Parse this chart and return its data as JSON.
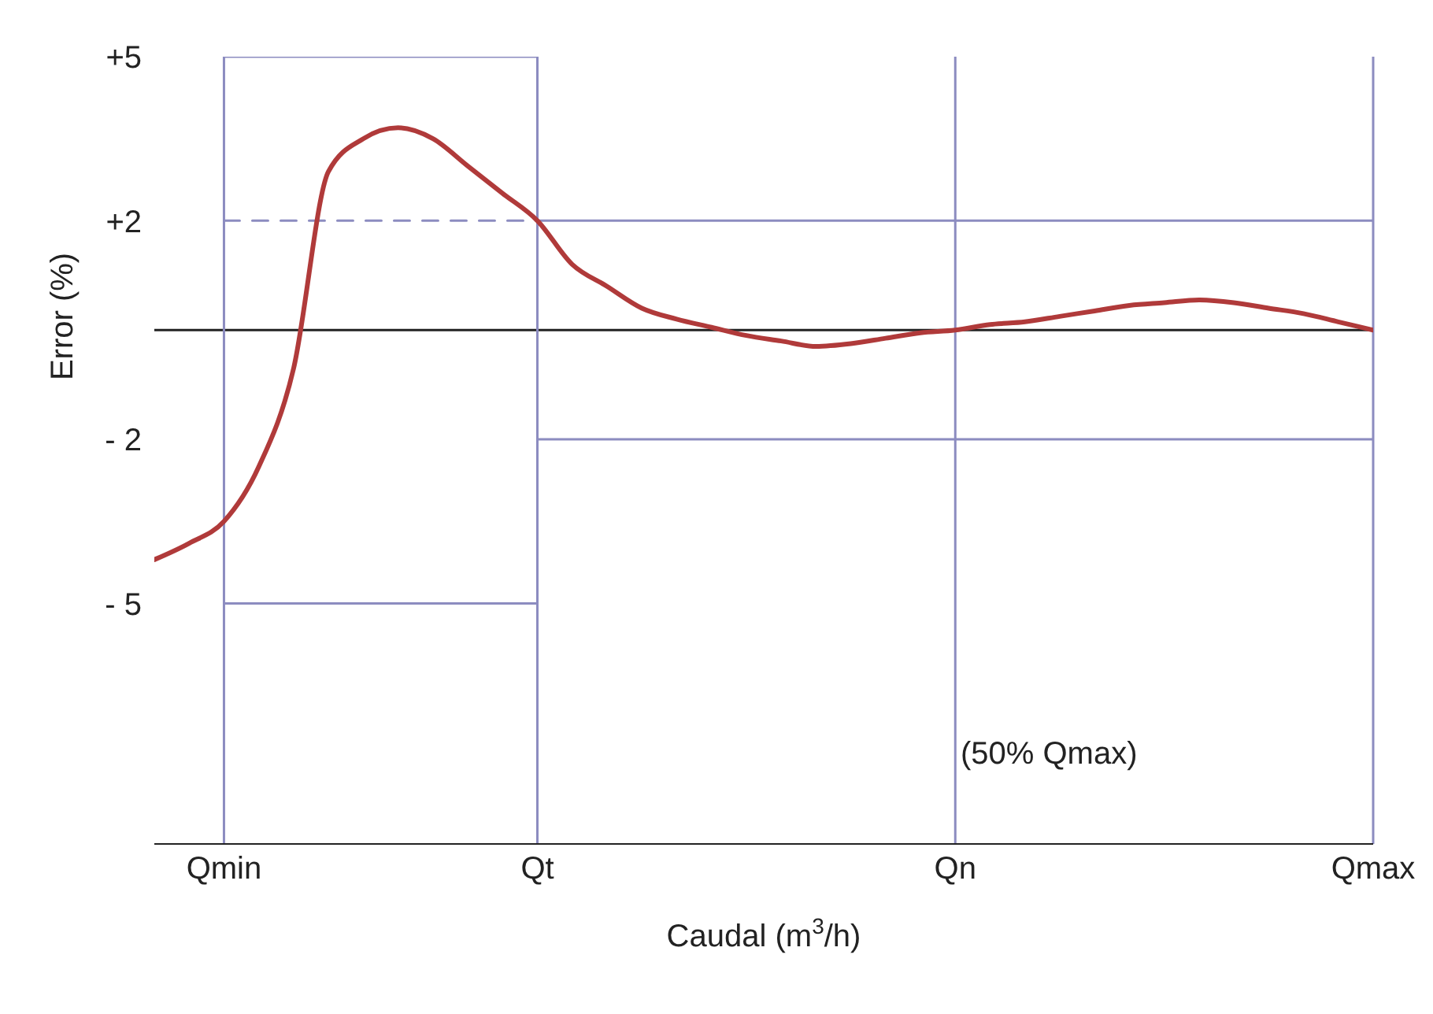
{
  "chart_data": {
    "type": "line",
    "xlabel": "Caudal (m$^{3}$/h)",
    "ylabel": "Error (%)",
    "categories": [
      null,
      null,
      "Qmin",
      null,
      null,
      null,
      null,
      null,
      null,
      null,
      null,
      "Qt",
      null,
      null,
      null,
      null,
      null,
      null,
      null,
      null,
      null,
      null,
      null,
      "Qn",
      null,
      null,
      null,
      null,
      null,
      null,
      null,
      null,
      null,
      null,
      null,
      "Qmax"
    ],
    "ylim": [
      -9.4,
      5
    ],
    "yticks": [
      {
        "value": 5,
        "label": "+5"
      },
      {
        "value": 2,
        "label": "+2"
      },
      {
        "value": -2,
        "label": "- 2"
      },
      {
        "value": -5,
        "label": "- 5"
      }
    ],
    "grid": false,
    "marker": "none",
    "ref_lines": [
      {
        "axis": "y",
        "value": 0,
        "color": "#222222"
      },
      {
        "axis": "x",
        "value": "Qmin",
        "color": "#8c8cc0"
      },
      {
        "axis": "x",
        "value": "Qt",
        "color": "#8c8cc0"
      },
      {
        "axis": "x",
        "value": "Qn",
        "color": "#8c8cc0"
      },
      {
        "axis": "x",
        "value": "Qmax",
        "color": "#8c8cc0"
      }
    ],
    "annotations": [
      "(50% Qmax)"
    ],
    "series": [
      {
        "type": "step",
        "color": "#8c8cc0",
        "line_style": "solid",
        "values": [
          null,
          null,
          5,
          5,
          5,
          5,
          5,
          5,
          5,
          5,
          5,
          2,
          2,
          2,
          2,
          2,
          2,
          2,
          2,
          2,
          2,
          2,
          2,
          2,
          2,
          2,
          2,
          2,
          2,
          2,
          2,
          2,
          2,
          2,
          2,
          2
        ]
      },
      {
        "type": "step",
        "color": "#8c8cc0",
        "line_style": "solid",
        "values": [
          null,
          null,
          -5,
          -5,
          -5,
          -5,
          -5,
          -5,
          -5,
          -5,
          -5,
          -2,
          -2,
          -2,
          -2,
          -2,
          -2,
          -2,
          -2,
          -2,
          -2,
          -2,
          -2,
          -2,
          -2,
          -2,
          -2,
          -2,
          -2,
          -2,
          -2,
          -2,
          -2,
          -2,
          -2,
          -2
        ]
      },
      {
        "color": "#8c8cc0",
        "line_style": "dashed",
        "values": [
          null,
          null,
          2,
          2,
          2,
          2,
          2,
          2,
          2,
          2,
          2,
          2,
          null,
          null,
          null,
          null,
          null,
          null,
          null,
          null,
          null,
          null,
          null,
          null,
          null,
          null,
          null,
          null,
          null,
          null,
          null,
          null,
          null,
          null,
          null,
          null
        ]
      },
      {
        "color": "#b03a3a",
        "line_style": "solid",
        "values": [
          -4.2,
          -3.9,
          -3.5,
          -2.5,
          -0.7,
          2.9,
          3.5,
          3.7,
          3.5,
          3.0,
          2.5,
          2.0,
          1.2,
          0.8,
          0.4,
          0.2,
          0.05,
          -0.1,
          -0.2,
          -0.3,
          -0.25,
          -0.15,
          -0.05,
          0,
          0.1,
          0.15,
          0.25,
          0.35,
          0.45,
          0.5,
          0.55,
          0.5,
          0.4,
          0.3,
          0.15,
          0
        ]
      }
    ]
  }
}
